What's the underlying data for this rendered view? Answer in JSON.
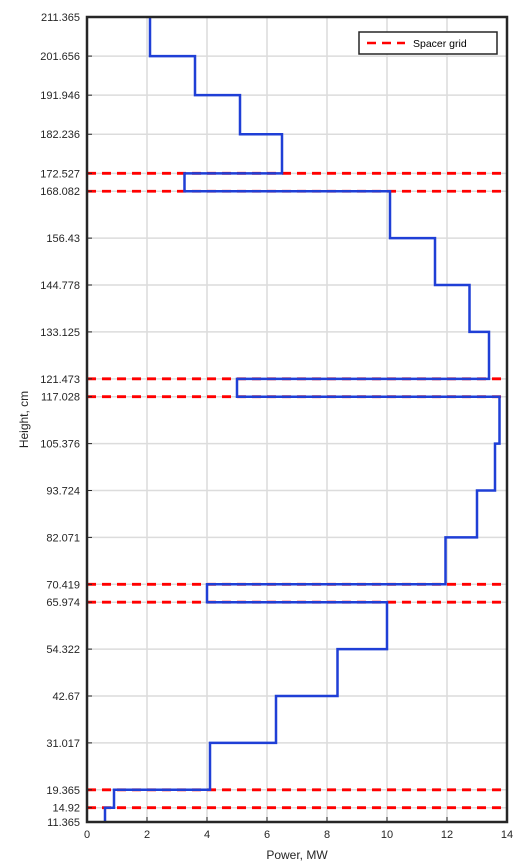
{
  "chart_data": {
    "type": "line",
    "xlabel": "Power, MW",
    "ylabel": "Height, cm",
    "xlim": [
      0,
      14
    ],
    "ylim": [
      11.365,
      211.365
    ],
    "grid": true,
    "legend_position": "top-right",
    "x_ticks": [
      0,
      2,
      4,
      6,
      8,
      10,
      12,
      14
    ],
    "y_ticks": [
      11.365,
      14.92,
      19.365,
      31.017,
      42.67,
      54.322,
      65.974,
      70.419,
      82.071,
      93.724,
      105.376,
      117.028,
      121.473,
      133.125,
      144.778,
      156.43,
      168.082,
      172.527,
      182.236,
      191.946,
      201.656,
      211.365
    ],
    "series": [
      {
        "name": "",
        "color": "#1f3fd6",
        "style": "step",
        "segments": [
          {
            "y0": 11.365,
            "y1": 14.92,
            "power": 0.6
          },
          {
            "y0": 14.92,
            "y1": 19.365,
            "power": 0.9
          },
          {
            "y0": 19.365,
            "y1": 31.017,
            "power": 4.1
          },
          {
            "y0": 31.017,
            "y1": 42.67,
            "power": 6.3
          },
          {
            "y0": 42.67,
            "y1": 54.322,
            "power": 8.35
          },
          {
            "y0": 54.322,
            "y1": 65.974,
            "power": 10.0
          },
          {
            "y0": 65.974,
            "y1": 70.419,
            "power": 4.0
          },
          {
            "y0": 70.419,
            "y1": 82.071,
            "power": 11.95
          },
          {
            "y0": 82.071,
            "y1": 93.724,
            "power": 13.0
          },
          {
            "y0": 93.724,
            "y1": 105.376,
            "power": 13.6
          },
          {
            "y0": 105.376,
            "y1": 117.028,
            "power": 13.75
          },
          {
            "y0": 117.028,
            "y1": 121.473,
            "power": 5.0
          },
          {
            "y0": 121.473,
            "y1": 133.125,
            "power": 13.4
          },
          {
            "y0": 133.125,
            "y1": 144.778,
            "power": 12.75
          },
          {
            "y0": 144.778,
            "y1": 156.43,
            "power": 11.6
          },
          {
            "y0": 156.43,
            "y1": 168.082,
            "power": 10.1
          },
          {
            "y0": 168.082,
            "y1": 172.527,
            "power": 3.25
          },
          {
            "y0": 172.527,
            "y1": 182.236,
            "power": 6.5
          },
          {
            "y0": 182.236,
            "y1": 191.946,
            "power": 5.1
          },
          {
            "y0": 191.946,
            "y1": 201.656,
            "power": 3.6
          },
          {
            "y0": 201.656,
            "y1": 211.365,
            "power": 2.1
          }
        ]
      },
      {
        "name": "Spacer grid",
        "color": "#ff0000",
        "style": "dashed-horizontal",
        "y": [
          14.92,
          19.365,
          65.974,
          70.419,
          117.028,
          121.473,
          168.082,
          172.527
        ]
      }
    ]
  }
}
